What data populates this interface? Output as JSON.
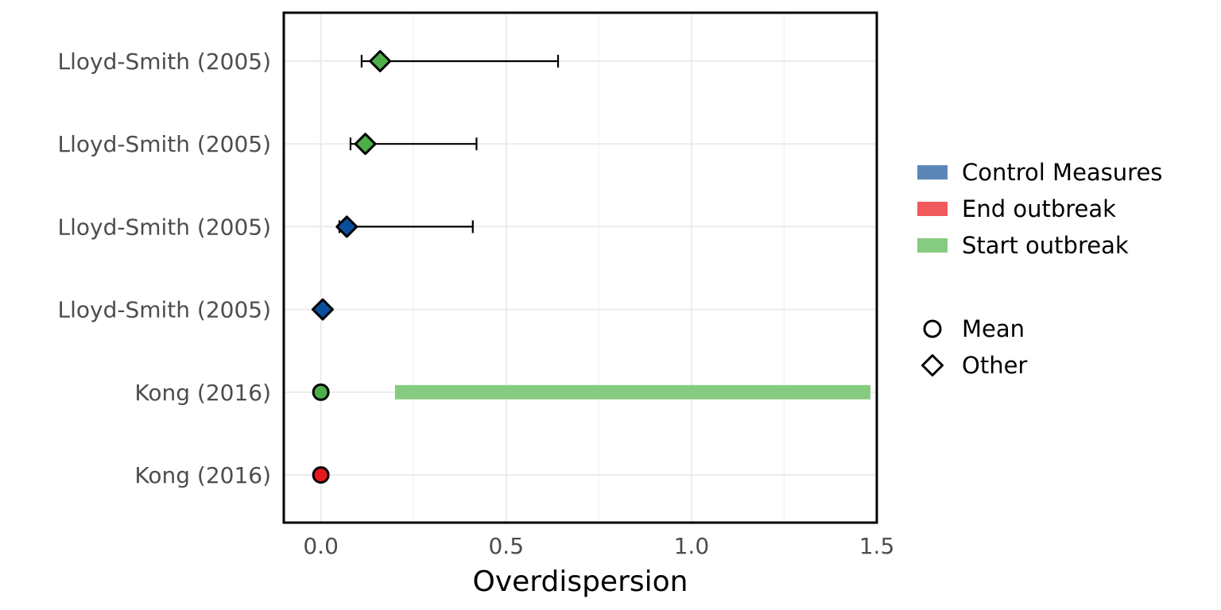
{
  "chart_data": {
    "type": "forest",
    "xlabel": "Overdispersion",
    "ylabel": "",
    "xlim": [
      -0.1,
      1.5
    ],
    "x_ticks": [
      0.0,
      0.5,
      1.0,
      1.5
    ],
    "x_tick_labels": [
      "0.0",
      "0.5",
      "1.0",
      "1.5"
    ],
    "grid": true,
    "legend_position": "right",
    "categories": [
      "Lloyd-Smith (2005)",
      "Lloyd-Smith (2005)",
      "Lloyd-Smith (2005)",
      "Lloyd-Smith (2005)",
      "Kong (2016)",
      "Kong (2016)"
    ],
    "colors": {
      "Control Measures": "#0b4f9c",
      "End outbreak": "#e41a1c",
      "Start outbreak": "#4daf4a",
      "range_Control Measures": "#5b87b8",
      "range_End outbreak": "#f05a5c",
      "range_Start outbreak": "#86cc80"
    },
    "points": [
      {
        "row": 0,
        "value": 0.16,
        "ci": [
          0.11,
          0.64
        ],
        "group": "Start outbreak",
        "shape": "Other"
      },
      {
        "row": 1,
        "value": 0.12,
        "ci": [
          0.08,
          0.42
        ],
        "group": "Start outbreak",
        "shape": "Other"
      },
      {
        "row": 2,
        "value": 0.07,
        "ci": [
          0.05,
          0.41
        ],
        "group": "Control Measures",
        "shape": "Other"
      },
      {
        "row": 3,
        "value": 0.005,
        "ci": null,
        "group": "Control Measures",
        "shape": "Other"
      },
      {
        "row": 4,
        "value": 0.0,
        "ci": null,
        "group": "Start outbreak",
        "shape": "Mean"
      },
      {
        "row": 5,
        "value": 0.0,
        "ci": null,
        "group": "End outbreak",
        "shape": "Mean"
      }
    ],
    "ranges": [
      {
        "row": 4,
        "from": 0.2,
        "to": 1.5,
        "group": "Start outbreak"
      }
    ],
    "legend": {
      "fill": [
        "Control Measures",
        "End outbreak",
        "Start outbreak"
      ],
      "shape": [
        "Mean",
        "Other"
      ]
    }
  }
}
